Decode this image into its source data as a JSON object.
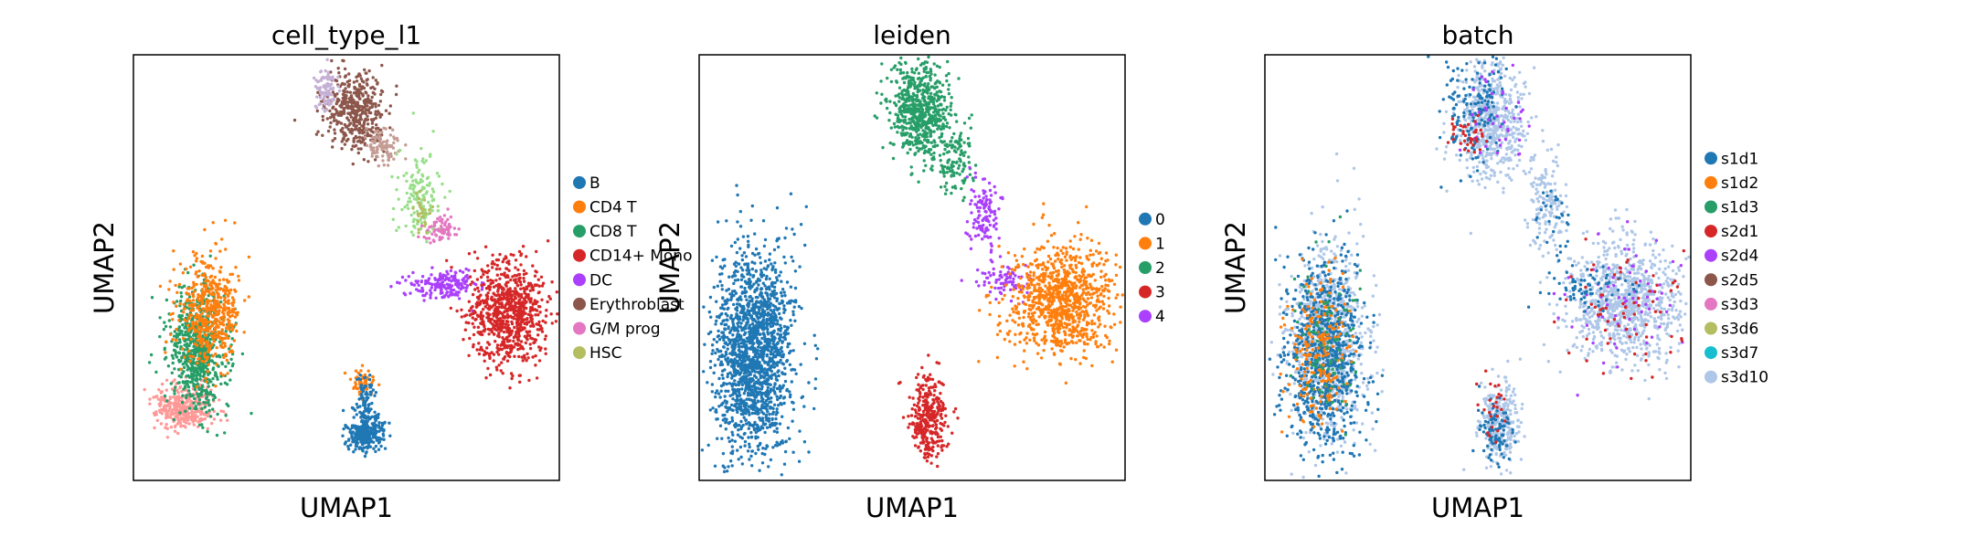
{
  "chart_data": [
    {
      "type": "scatter",
      "title": "cell_type_l1",
      "xlabel": "UMAP1",
      "ylabel": "UMAP2",
      "grid": false,
      "legend_placement": "right",
      "legend": [
        {
          "label": "B",
          "color": "#1f77b4"
        },
        {
          "label": "CD4 T",
          "color": "#ff7f0e"
        },
        {
          "label": "CD8 T",
          "color": "#279e68"
        },
        {
          "label": "CD14+ Mono",
          "color": "#d62728"
        },
        {
          "label": "DC",
          "color": "#aa40fc"
        },
        {
          "label": "Erythroblast",
          "color": "#8c564b"
        },
        {
          "label": "G/M prog",
          "color": "#e377c2"
        },
        {
          "label": "HSC",
          "color": "#b5bd61"
        }
      ],
      "clusters": [
        {
          "color": "#8c564b",
          "cx": 0.52,
          "cy": 0.13,
          "sx": 0.035,
          "sy": 0.05,
          "n": 450
        },
        {
          "color": "#c5b0d5",
          "cx": 0.455,
          "cy": 0.08,
          "sx": 0.015,
          "sy": 0.025,
          "n": 90
        },
        {
          "color": "#c49c94",
          "cx": 0.585,
          "cy": 0.215,
          "sx": 0.018,
          "sy": 0.022,
          "n": 80
        },
        {
          "color": "#98df8a",
          "cx": 0.67,
          "cy": 0.33,
          "sx": 0.025,
          "sy": 0.05,
          "n": 140
        },
        {
          "color": "#b5bd61",
          "cx": 0.68,
          "cy": 0.37,
          "sx": 0.01,
          "sy": 0.02,
          "n": 30
        },
        {
          "color": "#e377c2",
          "cx": 0.72,
          "cy": 0.41,
          "sx": 0.02,
          "sy": 0.018,
          "n": 70
        },
        {
          "color": "#aa40fc",
          "cx": 0.73,
          "cy": 0.54,
          "sx": 0.04,
          "sy": 0.018,
          "n": 180
        },
        {
          "color": "#d62728",
          "cx": 0.88,
          "cy": 0.61,
          "sx": 0.045,
          "sy": 0.06,
          "n": 800
        },
        {
          "color": "#ff9896",
          "cx": 0.12,
          "cy": 0.83,
          "sx": 0.035,
          "sy": 0.025,
          "n": 350
        },
        {
          "color": "#279e68",
          "cx": 0.15,
          "cy": 0.69,
          "sx": 0.035,
          "sy": 0.07,
          "n": 700
        },
        {
          "color": "#ff7f0e",
          "cx": 0.18,
          "cy": 0.6,
          "sx": 0.035,
          "sy": 0.06,
          "n": 500
        },
        {
          "color": "#1f77b4",
          "cx": 0.545,
          "cy": 0.89,
          "sx": 0.022,
          "sy": 0.022,
          "n": 260
        },
        {
          "color": "#ff7f0e",
          "cx": 0.54,
          "cy": 0.77,
          "sx": 0.012,
          "sy": 0.015,
          "n": 60
        },
        {
          "color": "#1f77b4",
          "cx": 0.545,
          "cy": 0.81,
          "sx": 0.012,
          "sy": 0.03,
          "n": 80
        }
      ]
    },
    {
      "type": "scatter",
      "title": "leiden",
      "xlabel": "UMAP1",
      "ylabel": "UMAP2",
      "grid": false,
      "legend_placement": "right",
      "legend": [
        {
          "label": "0",
          "color": "#1f77b4"
        },
        {
          "label": "1",
          "color": "#ff7f0e"
        },
        {
          "label": "2",
          "color": "#279e68"
        },
        {
          "label": "3",
          "color": "#d62728"
        },
        {
          "label": "4",
          "color": "#aa40fc"
        }
      ],
      "clusters": [
        {
          "color": "#279e68",
          "cx": 0.52,
          "cy": 0.13,
          "sx": 0.035,
          "sy": 0.055,
          "n": 650
        },
        {
          "color": "#279e68",
          "cx": 0.6,
          "cy": 0.25,
          "sx": 0.02,
          "sy": 0.04,
          "n": 120
        },
        {
          "color": "#aa40fc",
          "cx": 0.67,
          "cy": 0.37,
          "sx": 0.02,
          "sy": 0.045,
          "n": 120
        },
        {
          "color": "#aa40fc",
          "cx": 0.71,
          "cy": 0.53,
          "sx": 0.03,
          "sy": 0.02,
          "n": 80
        },
        {
          "color": "#ff7f0e",
          "cx": 0.85,
          "cy": 0.58,
          "sx": 0.06,
          "sy": 0.065,
          "n": 950
        },
        {
          "color": "#1f77b4",
          "cx": 0.13,
          "cy": 0.7,
          "sx": 0.045,
          "sy": 0.12,
          "n": 1700
        },
        {
          "color": "#d62728",
          "cx": 0.54,
          "cy": 0.85,
          "sx": 0.022,
          "sy": 0.05,
          "n": 320
        }
      ]
    },
    {
      "type": "scatter",
      "title": "batch",
      "xlabel": "UMAP1",
      "ylabel": "UMAP2",
      "grid": false,
      "legend_placement": "right",
      "legend": [
        {
          "label": "s1d1",
          "color": "#1f77b4"
        },
        {
          "label": "s1d2",
          "color": "#ff7f0e"
        },
        {
          "label": "s1d3",
          "color": "#279e68"
        },
        {
          "label": "s2d1",
          "color": "#d62728"
        },
        {
          "label": "s2d4",
          "color": "#aa40fc"
        },
        {
          "label": "s2d5",
          "color": "#8c564b"
        },
        {
          "label": "s3d3",
          "color": "#e377c2"
        },
        {
          "label": "s3d6",
          "color": "#b5bd61"
        },
        {
          "label": "s3d7",
          "color": "#17becf"
        },
        {
          "label": "s3d10",
          "color": "#aec7e8"
        }
      ],
      "clusters": [
        {
          "color": "#aec7e8",
          "cx": 0.53,
          "cy": 0.15,
          "sx": 0.04,
          "sy": 0.07,
          "n": 600
        },
        {
          "color": "#1f77b4",
          "cx": 0.5,
          "cy": 0.12,
          "sx": 0.04,
          "sy": 0.06,
          "n": 160
        },
        {
          "color": "#aa40fc",
          "cx": 0.55,
          "cy": 0.12,
          "sx": 0.04,
          "sy": 0.06,
          "n": 40
        },
        {
          "color": "#d62728",
          "cx": 0.48,
          "cy": 0.19,
          "sx": 0.02,
          "sy": 0.02,
          "n": 40
        },
        {
          "color": "#aec7e8",
          "cx": 0.66,
          "cy": 0.36,
          "sx": 0.025,
          "sy": 0.06,
          "n": 140
        },
        {
          "color": "#1f77b4",
          "cx": 0.68,
          "cy": 0.4,
          "sx": 0.02,
          "sy": 0.04,
          "n": 30
        },
        {
          "color": "#aec7e8",
          "cx": 0.85,
          "cy": 0.58,
          "sx": 0.065,
          "sy": 0.07,
          "n": 950
        },
        {
          "color": "#aa40fc",
          "cx": 0.85,
          "cy": 0.58,
          "sx": 0.075,
          "sy": 0.075,
          "n": 70
        },
        {
          "color": "#d62728",
          "cx": 0.85,
          "cy": 0.6,
          "sx": 0.07,
          "sy": 0.07,
          "n": 70
        },
        {
          "color": "#1f77b4",
          "cx": 0.76,
          "cy": 0.55,
          "sx": 0.045,
          "sy": 0.03,
          "n": 70
        },
        {
          "color": "#aec7e8",
          "cx": 0.15,
          "cy": 0.67,
          "sx": 0.045,
          "sy": 0.11,
          "n": 850
        },
        {
          "color": "#1f77b4",
          "cx": 0.14,
          "cy": 0.71,
          "sx": 0.045,
          "sy": 0.11,
          "n": 850
        },
        {
          "color": "#ff7f0e",
          "cx": 0.13,
          "cy": 0.7,
          "sx": 0.035,
          "sy": 0.09,
          "n": 220
        },
        {
          "color": "#279e68",
          "cx": 0.15,
          "cy": 0.66,
          "sx": 0.035,
          "sy": 0.09,
          "n": 90
        },
        {
          "color": "#aec7e8",
          "cx": 0.55,
          "cy": 0.86,
          "sx": 0.024,
          "sy": 0.055,
          "n": 280
        },
        {
          "color": "#1f77b4",
          "cx": 0.54,
          "cy": 0.88,
          "sx": 0.02,
          "sy": 0.035,
          "n": 90
        },
        {
          "color": "#d62728",
          "cx": 0.53,
          "cy": 0.84,
          "sx": 0.02,
          "sy": 0.045,
          "n": 25
        }
      ]
    }
  ]
}
